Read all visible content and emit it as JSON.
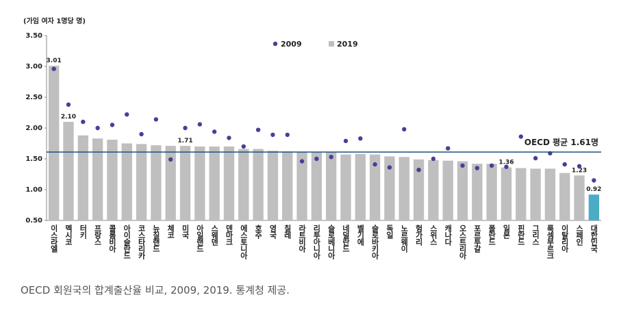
{
  "chart_data": {
    "type": "bar",
    "unit_label": "(가임 여자 1명당 명)",
    "categories": [
      "이스라엘",
      "멕시코",
      "터키",
      "프랑스",
      "콜롬비아",
      "아이슬란드",
      "코스타리카",
      "뉴질랜드",
      "체코",
      "미국",
      "아일랜드",
      "스웨덴",
      "덴마크",
      "에스토니아",
      "호주",
      "영국",
      "칠레",
      "라트비아",
      "리투아니아",
      "슬로베니아",
      "네덜란드",
      "벨기에",
      "슬로바키아",
      "독일",
      "노르웨이",
      "헝가리",
      "스위스",
      "캐나다",
      "오스트리아",
      "포르투갈",
      "폴란드",
      "일본",
      "핀란드",
      "그리스",
      "룩셈부르크",
      "이탈리아",
      "스페인",
      "대한민국"
    ],
    "series": [
      {
        "name": "2009",
        "mark": "dot",
        "color": "#4b3d99",
        "values": [
          2.96,
          2.38,
          2.1,
          2.0,
          2.05,
          2.22,
          1.9,
          2.14,
          1.49,
          2.0,
          2.06,
          1.94,
          1.84,
          1.7,
          1.97,
          1.89,
          1.89,
          1.46,
          1.5,
          1.53,
          1.79,
          1.83,
          1.41,
          1.36,
          1.98,
          1.32,
          1.5,
          1.67,
          1.39,
          1.35,
          1.39,
          1.37,
          1.86,
          1.51,
          1.59,
          1.41,
          1.38,
          1.15
        ]
      },
      {
        "name": "2019",
        "mark": "bar",
        "color": "#bfbfbf",
        "bar_colors": [
          "#bfbfbf",
          "#bfbfbf",
          "#bfbfbf",
          "#bfbfbf",
          "#bfbfbf",
          "#bfbfbf",
          "#bfbfbf",
          "#bfbfbf",
          "#bfbfbf",
          "#bfbfbf",
          "#bfbfbf",
          "#bfbfbf",
          "#bfbfbf",
          "#bfbfbf",
          "#bfbfbf",
          "#bfbfbf",
          "#bfbfbf",
          "#bfbfbf",
          "#bfbfbf",
          "#bfbfbf",
          "#bfbfbf",
          "#bfbfbf",
          "#bfbfbf",
          "#bfbfbf",
          "#bfbfbf",
          "#bfbfbf",
          "#bfbfbf",
          "#bfbfbf",
          "#bfbfbf",
          "#bfbfbf",
          "#bfbfbf",
          "#bfbfbf",
          "#bfbfbf",
          "#bfbfbf",
          "#bfbfbf",
          "#bfbfbf",
          "#bfbfbf",
          "#4bacc6"
        ],
        "values": [
          3.01,
          2.1,
          1.88,
          1.83,
          1.81,
          1.75,
          1.74,
          1.72,
          1.71,
          1.71,
          1.7,
          1.7,
          1.7,
          1.66,
          1.66,
          1.63,
          1.62,
          1.61,
          1.61,
          1.61,
          1.57,
          1.58,
          1.57,
          1.54,
          1.53,
          1.49,
          1.48,
          1.47,
          1.46,
          1.42,
          1.42,
          1.36,
          1.35,
          1.34,
          1.34,
          1.27,
          1.23,
          0.92
        ],
        "value_labels": [
          "3.01",
          "2.10",
          null,
          null,
          null,
          null,
          null,
          null,
          null,
          "1.71",
          null,
          null,
          null,
          null,
          null,
          null,
          null,
          null,
          null,
          null,
          null,
          null,
          null,
          null,
          null,
          null,
          null,
          null,
          null,
          null,
          null,
          "1.36",
          null,
          null,
          null,
          null,
          "1.23",
          "0.92"
        ]
      }
    ],
    "reference_line": {
      "value": 1.61,
      "label": "OECD 평균 1.61명",
      "color": "#1f4e79"
    },
    "ylim": [
      0.5,
      3.5
    ],
    "yticks": [
      {
        "value": 0.5,
        "label": "0.50"
      },
      {
        "value": 1,
        "label": "1.00"
      },
      {
        "value": 1.5,
        "label": "1.50"
      },
      {
        "value": 2,
        "label": "2.00"
      },
      {
        "value": 2.5,
        "label": "2.50"
      },
      {
        "value": 3,
        "label": "3.00"
      },
      {
        "value": 3.5,
        "label": "3.50"
      }
    ],
    "grid": false,
    "legend": "top"
  },
  "caption": "OECD 회원국의 합계출산율 비교, 2009, 2019. 통계청 제공."
}
